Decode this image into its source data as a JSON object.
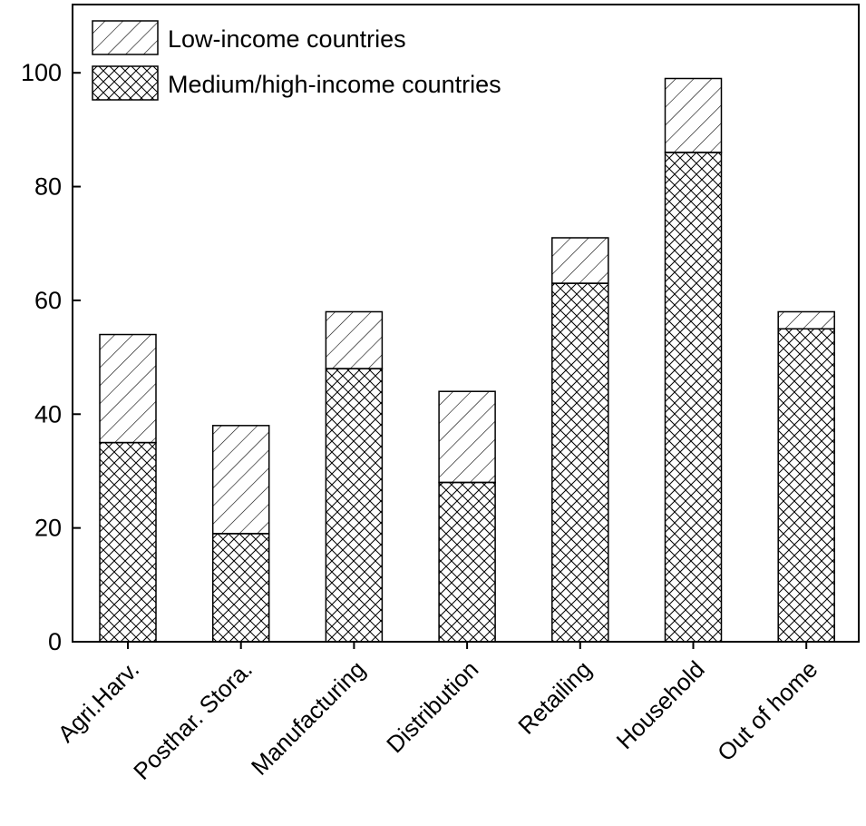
{
  "chart_data": {
    "type": "bar",
    "stacked": true,
    "categories": [
      "Agri.Harv.",
      "Posthar. Stora.",
      "Manufacturing",
      "Distribution",
      "Retailing",
      "Household",
      "Out of home"
    ],
    "series": [
      {
        "name": "Medium/high-income countries",
        "values": [
          35,
          19,
          48,
          28,
          63,
          86,
          55
        ],
        "pattern": "crosshatch"
      },
      {
        "name": "Low-income countries",
        "values": [
          19,
          19,
          10,
          16,
          8,
          13,
          3
        ],
        "pattern": "diagonal"
      }
    ],
    "totals": [
      54,
      38,
      58,
      44,
      71,
      99,
      58
    ],
    "legend": [
      "Low-income countries",
      "Medium/high-income countries"
    ],
    "legend_position": "top-left",
    "ylim": [
      0,
      112
    ],
    "yticks": [
      "0",
      "20",
      "40",
      "60",
      "80",
      "100"
    ],
    "xlabel": "",
    "ylabel": "",
    "grid": false,
    "colors": {
      "axis": "#000000",
      "fill": "#ffffff",
      "hatch": "#000000"
    }
  }
}
